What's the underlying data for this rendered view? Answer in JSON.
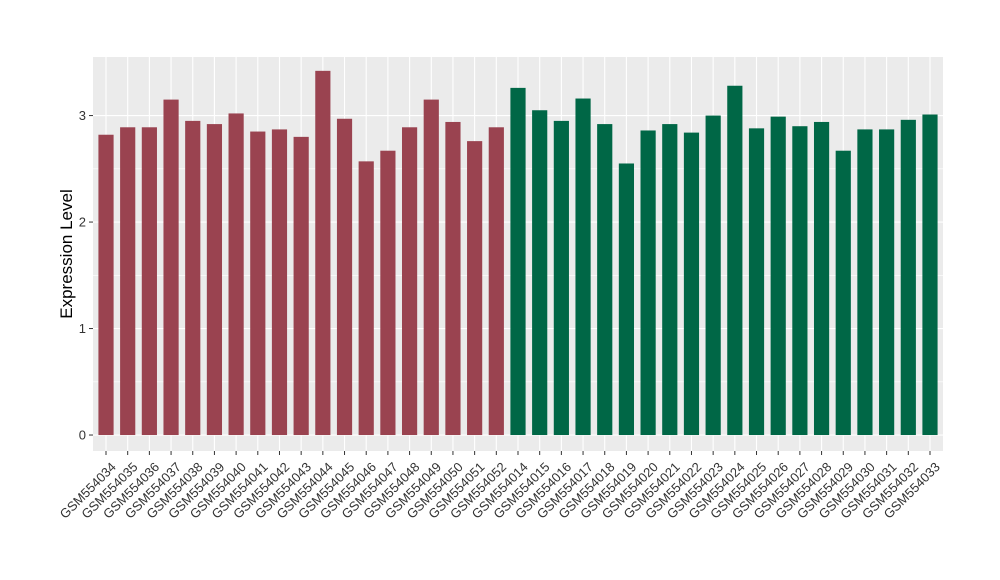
{
  "chart_data": {
    "type": "bar",
    "xlabel": "",
    "ylabel": "Expression Level",
    "ylim": [
      -0.15,
      3.55
    ],
    "yticks": [
      0,
      1,
      2,
      3
    ],
    "grid": true,
    "colors": {
      "group_1": "#9a4350",
      "group_2": "#006746",
      "panel": "#ebebeb",
      "grid": "#ffffff"
    },
    "categories": [
      "GSM554034",
      "GSM554035",
      "GSM554036",
      "GSM554037",
      "GSM554038",
      "GSM554039",
      "GSM554040",
      "GSM554041",
      "GSM554042",
      "GSM554043",
      "GSM554044",
      "GSM554045",
      "GSM554046",
      "GSM554047",
      "GSM554048",
      "GSM554049",
      "GSM554050",
      "GSM554051",
      "GSM554052",
      "GSM554014",
      "GSM554015",
      "GSM554016",
      "GSM554017",
      "GSM554018",
      "GSM554019",
      "GSM554020",
      "GSM554021",
      "GSM554022",
      "GSM554023",
      "GSM554024",
      "GSM554025",
      "GSM554026",
      "GSM554027",
      "GSM554028",
      "GSM554029",
      "GSM554030",
      "GSM554031",
      "GSM554032",
      "GSM554033"
    ],
    "values": [
      2.82,
      2.89,
      2.89,
      3.15,
      2.95,
      2.92,
      3.02,
      2.85,
      2.87,
      2.8,
      3.42,
      2.97,
      2.57,
      2.67,
      2.89,
      3.15,
      2.94,
      2.76,
      2.89,
      3.26,
      3.05,
      2.95,
      3.16,
      2.92,
      2.55,
      2.86,
      2.92,
      2.84,
      3.0,
      3.28,
      2.88,
      2.99,
      2.9,
      2.94,
      2.67,
      2.87,
      2.87,
      2.96,
      3.01
    ],
    "groups": [
      1,
      1,
      1,
      1,
      1,
      1,
      1,
      1,
      1,
      1,
      1,
      1,
      1,
      1,
      1,
      1,
      1,
      1,
      1,
      2,
      2,
      2,
      2,
      2,
      2,
      2,
      2,
      2,
      2,
      2,
      2,
      2,
      2,
      2,
      2,
      2,
      2,
      2,
      2
    ]
  }
}
